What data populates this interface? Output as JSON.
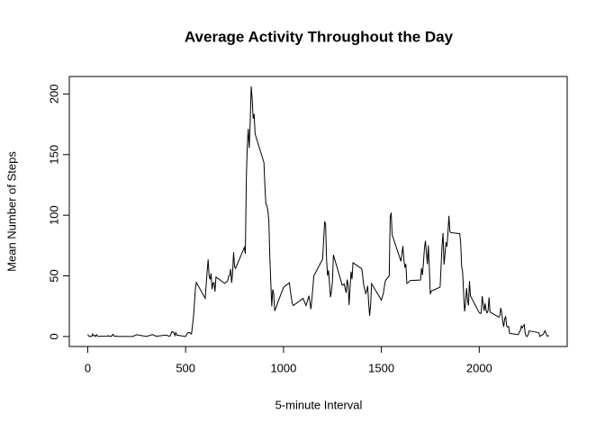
{
  "chart_data": {
    "type": "line",
    "title": "Average Activity Throughout the Day",
    "xlabel": "5-minute Interval",
    "ylabel": "Mean Number of Steps",
    "x": [
      0,
      5,
      10,
      15,
      20,
      25,
      30,
      35,
      40,
      45,
      50,
      55,
      100,
      105,
      110,
      115,
      120,
      125,
      130,
      135,
      140,
      145,
      150,
      155,
      200,
      230,
      250,
      300,
      330,
      350,
      400,
      415,
      420,
      430,
      440,
      445,
      450,
      455,
      500,
      510,
      520,
      530,
      540,
      550,
      555,
      600,
      610,
      615,
      620,
      625,
      630,
      635,
      640,
      645,
      650,
      655,
      700,
      715,
      720,
      725,
      730,
      735,
      740,
      745,
      750,
      755,
      800,
      805,
      810,
      815,
      820,
      825,
      830,
      835,
      840,
      845,
      850,
      855,
      900,
      905,
      910,
      915,
      920,
      925,
      930,
      935,
      940,
      945,
      950,
      955,
      1000,
      1030,
      1035,
      1045,
      1050,
      1100,
      1115,
      1130,
      1140,
      1150,
      1155,
      1200,
      1210,
      1215,
      1220,
      1225,
      1230,
      1240,
      1245,
      1250,
      1255,
      1300,
      1310,
      1320,
      1325,
      1330,
      1335,
      1340,
      1345,
      1350,
      1355,
      1400,
      1410,
      1420,
      1425,
      1430,
      1435,
      1440,
      1445,
      1450,
      1500,
      1510,
      1520,
      1530,
      1540,
      1545,
      1550,
      1555,
      1600,
      1610,
      1615,
      1620,
      1625,
      1630,
      1640,
      1645,
      1650,
      1700,
      1705,
      1710,
      1715,
      1720,
      1725,
      1730,
      1735,
      1740,
      1745,
      1750,
      1755,
      1800,
      1805,
      1810,
      1815,
      1820,
      1825,
      1830,
      1835,
      1840,
      1845,
      1850,
      1855,
      1900,
      1905,
      1910,
      1915,
      1920,
      1925,
      1930,
      1935,
      1940,
      1945,
      1950,
      1955,
      2000,
      2005,
      2010,
      2015,
      2020,
      2025,
      2030,
      2035,
      2040,
      2045,
      2050,
      2055,
      2100,
      2105,
      2110,
      2115,
      2120,
      2125,
      2130,
      2135,
      2140,
      2145,
      2150,
      2155,
      2200,
      2205,
      2210,
      2215,
      2220,
      2225,
      2230,
      2235,
      2240,
      2245,
      2250,
      2255,
      2300,
      2305,
      2310,
      2315,
      2320,
      2325,
      2330,
      2335,
      2340,
      2345,
      2350,
      2355
    ],
    "values": [
      1.7,
      0.3,
      0.1,
      0.2,
      0.1,
      2.1,
      0.5,
      0.9,
      0,
      1.5,
      0.3,
      0.1,
      0.3,
      0.7,
      0.2,
      0.3,
      0,
      1.1,
      1.8,
      0.2,
      0.2,
      0.4,
      0.3,
      0,
      0,
      0,
      1.5,
      0,
      1.6,
      0.2,
      1.2,
      0.3,
      0.3,
      4,
      3.5,
      0.8,
      3.1,
      1.1,
      0,
      3,
      3.3,
      2.1,
      16,
      39.5,
      44.5,
      31.5,
      53.8,
      63.5,
      50,
      47,
      52,
      39,
      44,
      44.5,
      37,
      49,
      43.8,
      46,
      49.9,
      50.3,
      55.7,
      44.3,
      52.3,
      69.5,
      57.8,
      56.2,
      73.4,
      68.2,
      129.4,
      157.5,
      171.2,
      155.4,
      177.3,
      206.2,
      195.9,
      179.6,
      183.4,
      167,
      143.5,
      124,
      109.1,
      108.1,
      103.7,
      95.9,
      66.2,
      45.2,
      24.8,
      38.8,
      34.9,
      21.1,
      40.6,
      44.3,
      37.4,
      27,
      25.5,
      31.4,
      25.5,
      33.6,
      22.6,
      40,
      50,
      63.9,
      94.8,
      92.8,
      63.4,
      50.2,
      54.5,
      32.4,
      37.7,
      45.1,
      67.3,
      42.3,
      43.3,
      36,
      47,
      42.8,
      26,
      40,
      53.5,
      47.3,
      60.8,
      55.8,
      42.3,
      35.5,
      37.5,
      41.8,
      27.5,
      17.1,
      26.1,
      43.6,
      30,
      35.5,
      45.9,
      48.1,
      50,
      98.3,
      102.1,
      83.9,
      62,
      74.5,
      63.2,
      56.9,
      59.8,
      43.8,
      44.8,
      46,
      46.2,
      46.6,
      56.3,
      50.7,
      61.2,
      72.7,
      78.9,
      68.9,
      59.7,
      75.1,
      56.5,
      34.8,
      37.5,
      40.7,
      58,
      74.7,
      85.3,
      59.3,
      67.8,
      77.7,
      74.2,
      85.3,
      99.5,
      86.6,
      85.6,
      84.9,
      77.8,
      58,
      53.4,
      36.3,
      20.7,
      27.4,
      40,
      30.2,
      25.5,
      45.7,
      33.5,
      19.6,
      19,
      19.3,
      33.3,
      26.8,
      21.2,
      27.3,
      21.3,
      19.5,
      21.3,
      32.3,
      20.2,
      15.9,
      17.2,
      23.5,
      19.2,
      12.5,
      8,
      14.7,
      16.3,
      8.7,
      7.8,
      8.1,
      2.6,
      1.5,
      3.7,
      4.8,
      8.5,
      7.1,
      8.7,
      9.8,
      2.2,
      0.3,
      0.1,
      1.6,
      4.6,
      3.3,
      2.8,
      0,
      0.8,
      1,
      1.6,
      2.6,
      4.7,
      3.3,
      0.6,
      0.2,
      1.1
    ],
    "color": "#000000",
    "xlim": [
      -94.2,
      2449.2
    ],
    "xticks": [
      0,
      500,
      1000,
      1500,
      2000
    ],
    "ylim": [
      -8.25,
      214.4
    ],
    "yticks": [
      0,
      50,
      100,
      150,
      200
    ],
    "grid": false
  }
}
